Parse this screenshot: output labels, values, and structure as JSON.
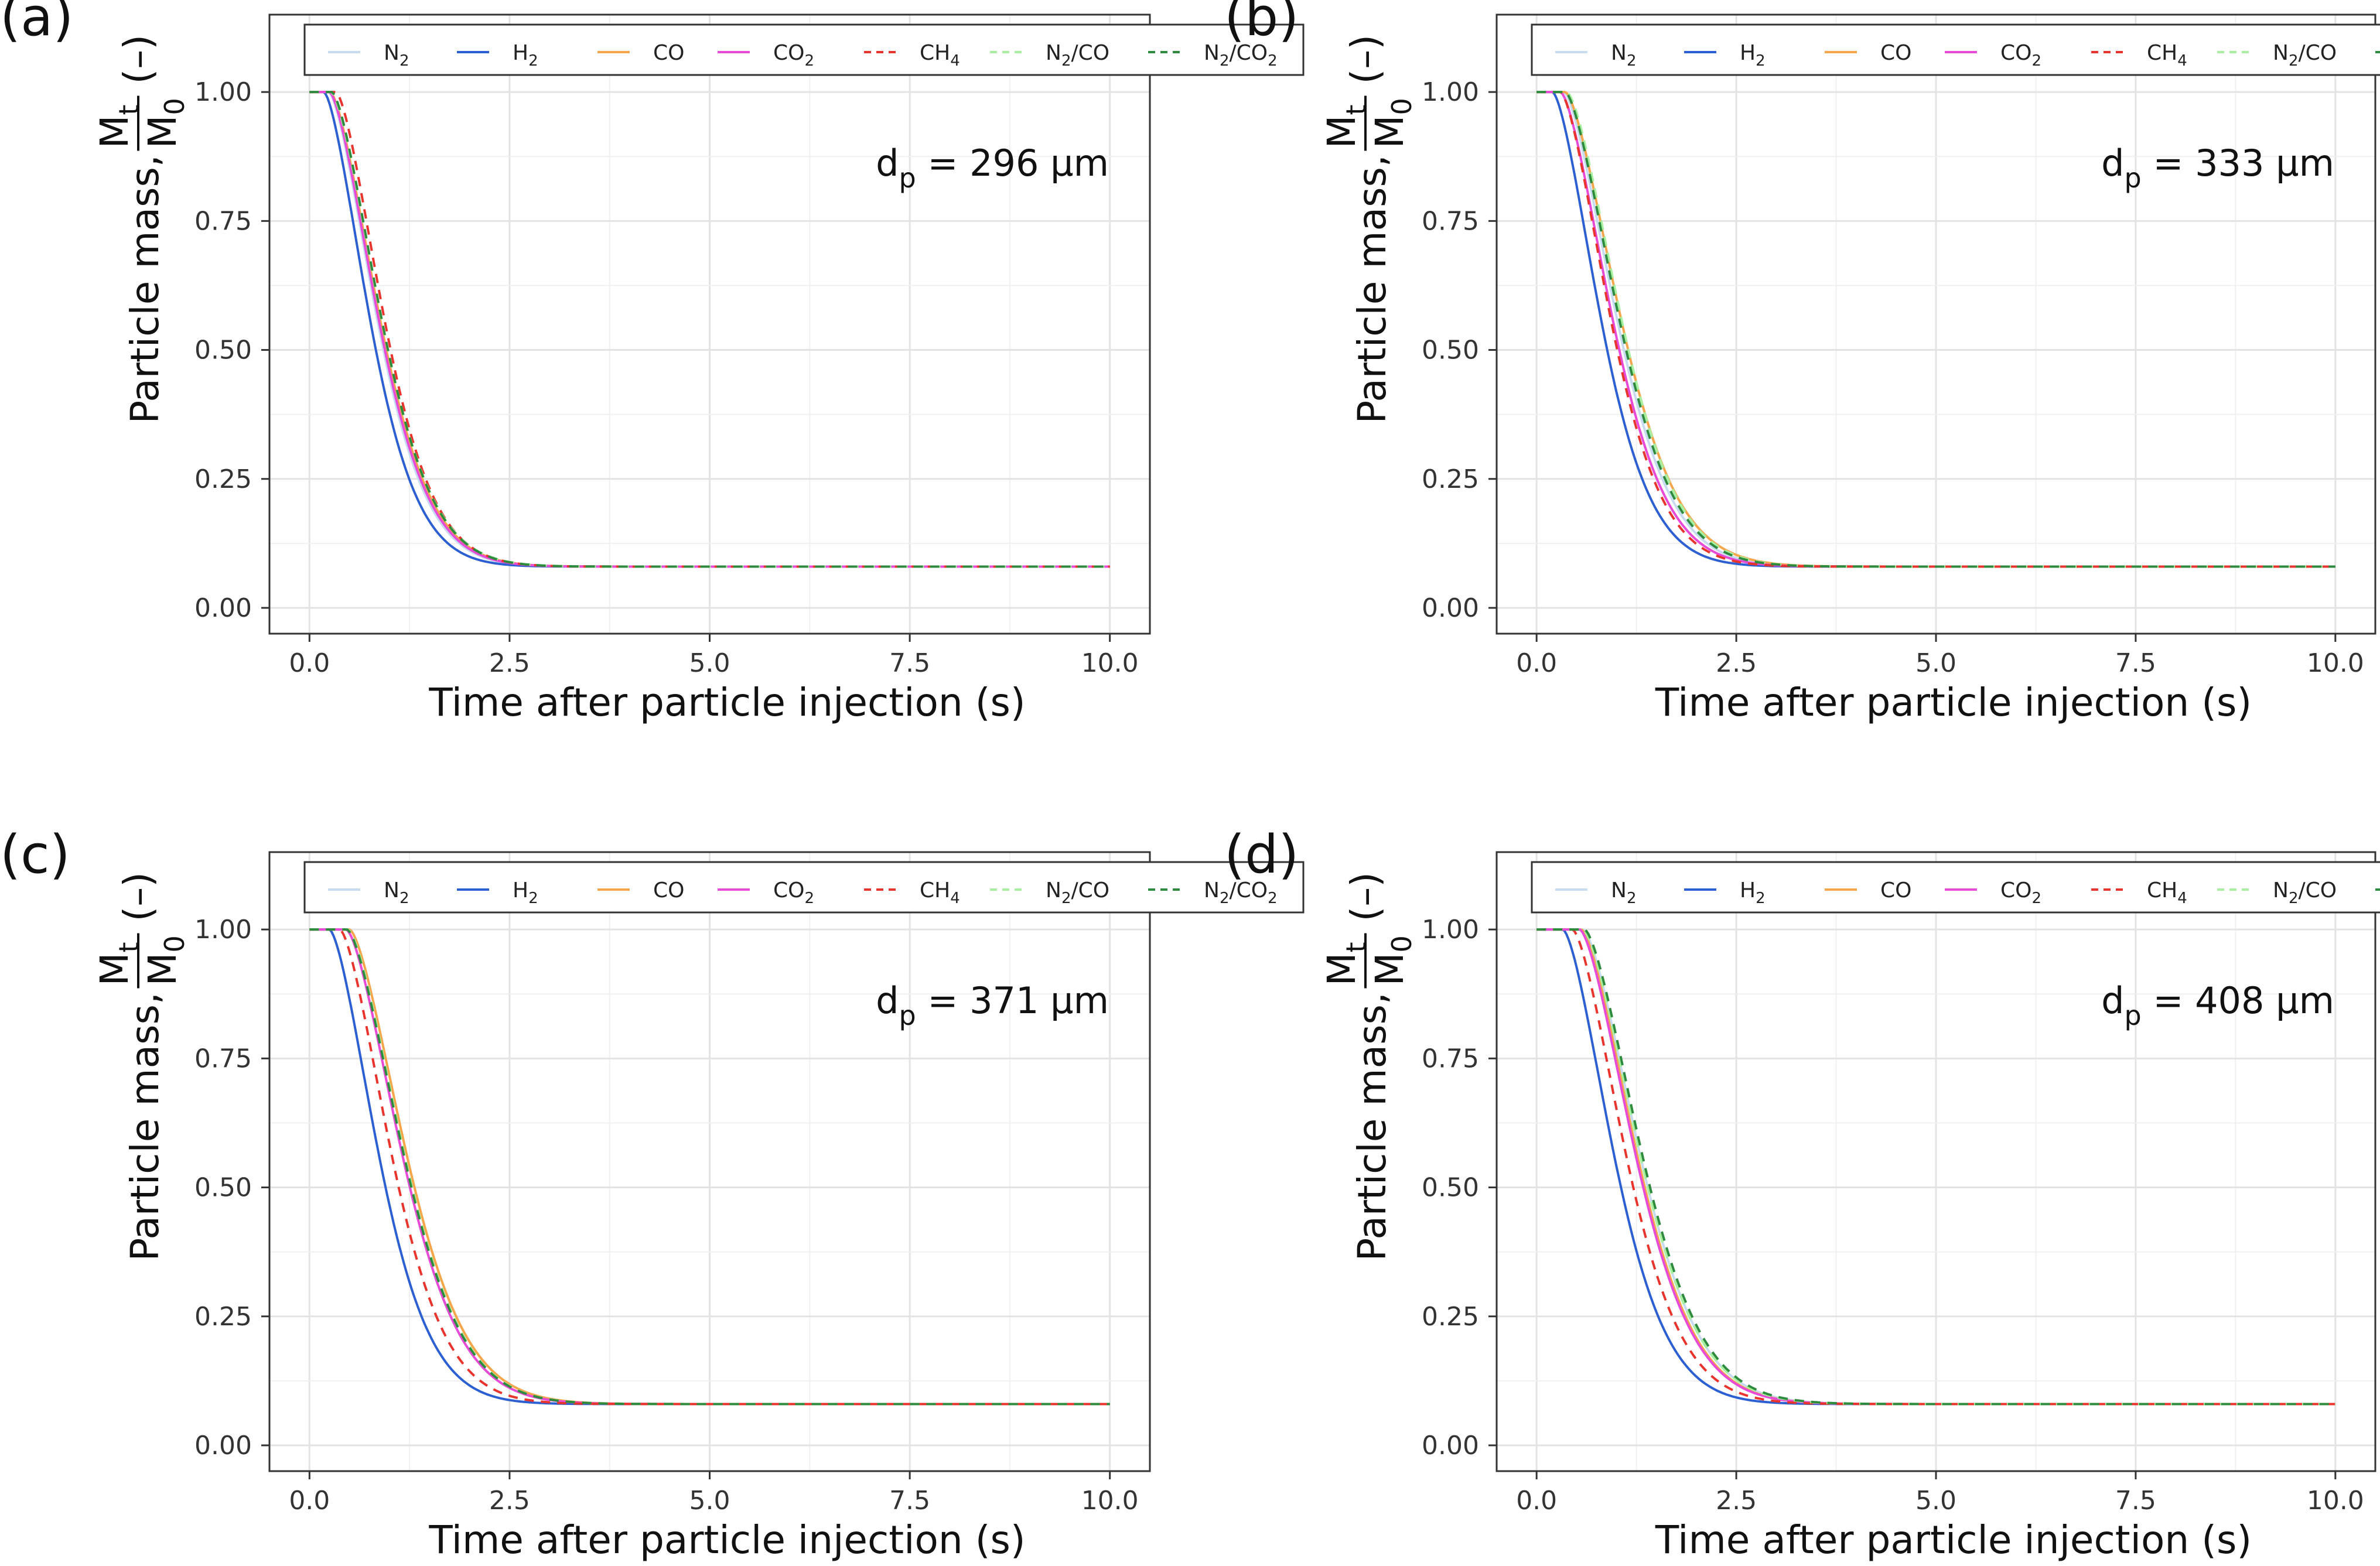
{
  "figure": {
    "legend_entries": [
      {
        "name": "N2",
        "base": "N",
        "sub": "2",
        "suffix": "",
        "suffix_sub": "",
        "color": "#c6dbef",
        "dash": "solid"
      },
      {
        "name": "H2",
        "base": "H",
        "sub": "2",
        "suffix": "",
        "suffix_sub": "",
        "color": "#2c5fd1",
        "dash": "solid"
      },
      {
        "name": "CO",
        "base": "CO",
        "sub": "",
        "suffix": "",
        "suffix_sub": "",
        "color": "#f5a54a",
        "dash": "solid"
      },
      {
        "name": "CO2",
        "base": "CO",
        "sub": "2",
        "suffix": "",
        "suffix_sub": "",
        "color": "#e84ad8",
        "dash": "solid"
      },
      {
        "name": "CH4",
        "base": "CH",
        "sub": "4",
        "suffix": "",
        "suffix_sub": "",
        "color": "#e8342c",
        "dash": "dashed"
      },
      {
        "name": "N2/CO",
        "base": "N",
        "sub": "2",
        "suffix": "/CO",
        "suffix_sub": "",
        "color": "#a6f0a0",
        "dash": "dashed"
      },
      {
        "name": "N2/CO2",
        "base": "N",
        "sub": "2",
        "suffix": "/CO",
        "suffix_sub": "2",
        "color": "#2e8b3e",
        "dash": "dashed"
      }
    ],
    "xlabel": "Time after particle injection (s)",
    "ylabel_prefix": "Particle mass,",
    "ylabel_frac_num": "M",
    "ylabel_frac_num_sub": "t",
    "ylabel_frac_den": "M",
    "ylabel_frac_den_sub": "0",
    "ylabel_unit": "(–)",
    "x_ticks": [
      "0.0",
      "2.5",
      "5.0",
      "7.5",
      "10.0"
    ],
    "y_ticks": [
      "0.00",
      "0.25",
      "0.50",
      "0.75",
      "1.00"
    ],
    "annotation_prefix": "d",
    "annotation_sub": "p",
    "annotation_unit": "µm"
  },
  "chart_data": [
    {
      "panel": "(a)",
      "type": "line",
      "d_value": "296",
      "xlim": [
        -0.5,
        10.5
      ],
      "ylim": [
        -0.05,
        1.15
      ],
      "grid": true,
      "legend": "top",
      "series": [
        {
          "name": "N2",
          "delay": 0.24,
          "tau": 0.8
        },
        {
          "name": "H2",
          "delay": 0.18,
          "tau": 0.76
        },
        {
          "name": "CO",
          "delay": 0.26,
          "tau": 0.82
        },
        {
          "name": "CO2",
          "delay": 0.25,
          "tau": 0.81
        },
        {
          "name": "CH4",
          "delay": 0.33,
          "tau": 0.8
        },
        {
          "name": "N2/CO",
          "delay": 0.27,
          "tau": 0.83
        },
        {
          "name": "N2/CO2",
          "delay": 0.28,
          "tau": 0.82
        }
      ],
      "plateau": 0.08
    },
    {
      "panel": "(b)",
      "type": "line",
      "d_value": "333",
      "xlim": [
        -0.5,
        10.5
      ],
      "ylim": [
        -0.05,
        1.15
      ],
      "grid": true,
      "legend": "top",
      "series": [
        {
          "name": "N2",
          "delay": 0.34,
          "tau": 0.88
        },
        {
          "name": "H2",
          "delay": 0.2,
          "tau": 0.8
        },
        {
          "name": "CO",
          "delay": 0.36,
          "tau": 0.92
        },
        {
          "name": "CO2",
          "delay": 0.3,
          "tau": 0.86
        },
        {
          "name": "CH4",
          "delay": 0.3,
          "tau": 0.83
        },
        {
          "name": "N2/CO",
          "delay": 0.38,
          "tau": 0.9
        },
        {
          "name": "N2/CO2",
          "delay": 0.36,
          "tau": 0.89
        }
      ],
      "plateau": 0.08
    },
    {
      "panel": "(c)",
      "type": "line",
      "d_value": "371",
      "xlim": [
        -0.5,
        10.5
      ],
      "ylim": [
        -0.05,
        1.15
      ],
      "grid": true,
      "legend": "top",
      "series": [
        {
          "name": "N2",
          "delay": 0.46,
          "tau": 0.93
        },
        {
          "name": "H2",
          "delay": 0.25,
          "tau": 0.82
        },
        {
          "name": "CO",
          "delay": 0.5,
          "tau": 0.95
        },
        {
          "name": "CO2",
          "delay": 0.46,
          "tau": 0.93
        },
        {
          "name": "CH4",
          "delay": 0.38,
          "tau": 0.86
        },
        {
          "name": "N2/CO",
          "delay": 0.48,
          "tau": 0.94
        },
        {
          "name": "N2/CO2",
          "delay": 0.47,
          "tau": 0.94
        }
      ],
      "plateau": 0.08
    },
    {
      "panel": "(d)",
      "type": "line",
      "d_value": "408",
      "xlim": [
        -0.5,
        10.5
      ],
      "ylim": [
        -0.05,
        1.15
      ],
      "grid": true,
      "legend": "top",
      "series": [
        {
          "name": "N2",
          "delay": 0.58,
          "tau": 0.95
        },
        {
          "name": "H2",
          "delay": 0.33,
          "tau": 0.85
        },
        {
          "name": "CO",
          "delay": 0.56,
          "tau": 0.93
        },
        {
          "name": "CO2",
          "delay": 0.54,
          "tau": 0.93
        },
        {
          "name": "CH4",
          "delay": 0.45,
          "tau": 0.89
        },
        {
          "name": "N2/CO",
          "delay": 0.58,
          "tau": 0.95
        },
        {
          "name": "N2/CO2",
          "delay": 0.6,
          "tau": 0.96
        }
      ],
      "plateau": 0.08
    }
  ]
}
